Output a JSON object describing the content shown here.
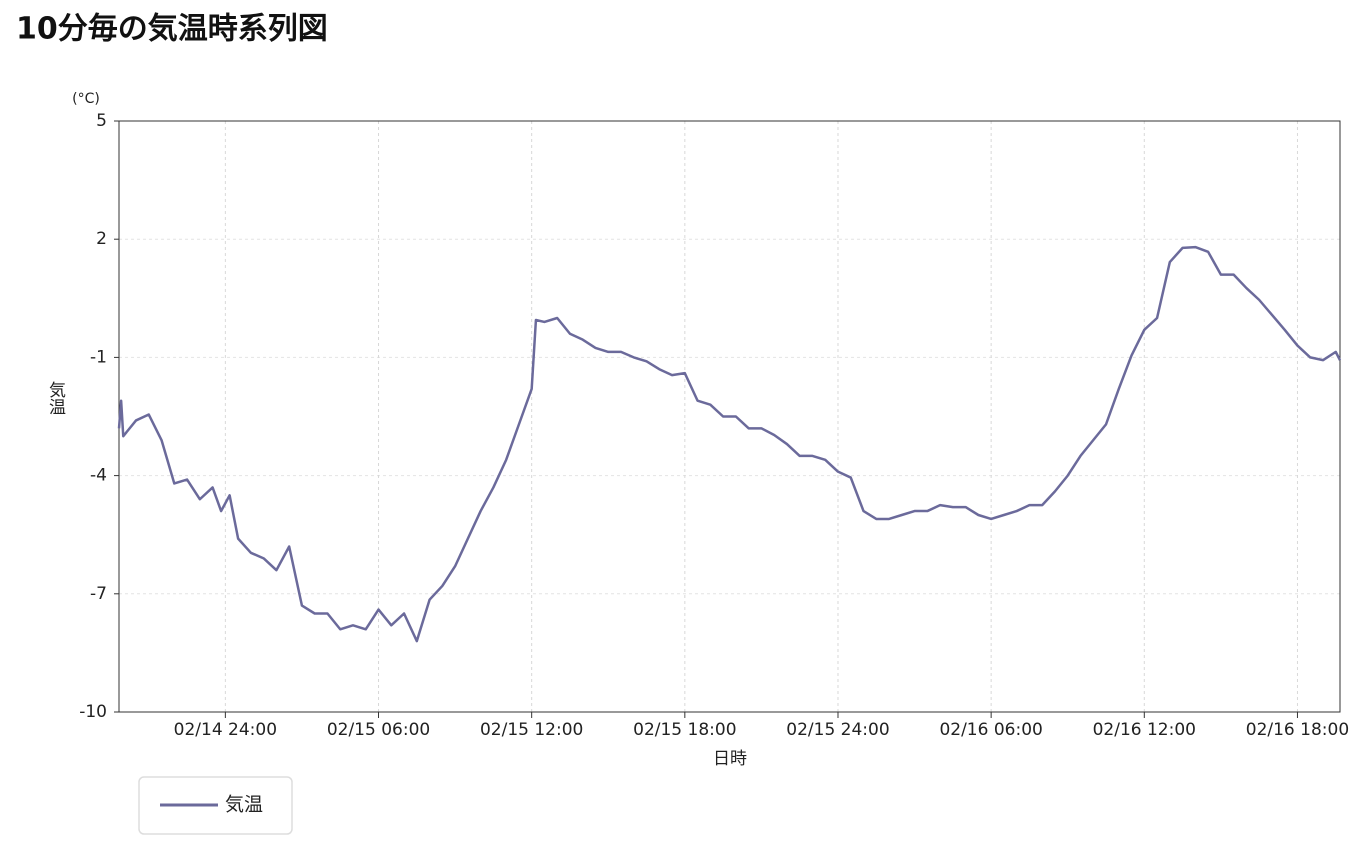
{
  "chart_data": {
    "type": "line",
    "title": "10分毎の気温時系列図",
    "x_label": "日時",
    "y_label": "気温",
    "y_unit_label": "(°C)",
    "x": [
      "02/14 19:50",
      "02/14 19:55",
      "02/14 20:00",
      "02/14 20:30",
      "02/14 21:00",
      "02/14 21:30",
      "02/14 22:00",
      "02/14 22:30",
      "02/14 23:00",
      "02/14 23:30",
      "02/14 23:50",
      "02/14 24:00",
      "02/15 00:10",
      "02/15 00:30",
      "02/15 01:00",
      "02/15 01:30",
      "02/15 02:00",
      "02/15 02:30",
      "02/15 03:00",
      "02/15 03:30",
      "02/15 04:00",
      "02/15 04:30",
      "02/15 05:00",
      "02/15 05:30",
      "02/15 06:00",
      "02/15 06:30",
      "02/15 07:00",
      "02/15 07:30",
      "02/15 08:00",
      "02/15 08:30",
      "02/15 09:00",
      "02/15 09:30",
      "02/15 10:00",
      "02/15 10:30",
      "02/15 11:00",
      "02/15 11:30",
      "02/15 12:00",
      "02/15 12:10",
      "02/15 12:30",
      "02/15 13:00",
      "02/15 13:30",
      "02/15 14:00",
      "02/15 14:30",
      "02/15 15:00",
      "02/15 15:30",
      "02/15 16:00",
      "02/15 16:30",
      "02/15 17:00",
      "02/15 17:30",
      "02/15 18:00",
      "02/15 18:30",
      "02/15 19:00",
      "02/15 19:30",
      "02/15 20:00",
      "02/15 20:30",
      "02/15 21:00",
      "02/15 21:30",
      "02/15 22:00",
      "02/15 22:30",
      "02/15 23:00",
      "02/15 23:30",
      "02/15 24:00",
      "02/16 00:30",
      "02/16 01:00",
      "02/16 01:30",
      "02/16 02:00",
      "02/16 02:30",
      "02/16 03:00",
      "02/16 03:30",
      "02/16 04:00",
      "02/16 04:30",
      "02/16 05:00",
      "02/16 05:30",
      "02/16 06:00",
      "02/16 06:30",
      "02/16 07:00",
      "02/16 07:30",
      "02/16 08:00",
      "02/16 08:30",
      "02/16 09:00",
      "02/16 09:30",
      "02/16 10:00",
      "02/16 10:30",
      "02/16 11:00",
      "02/16 11:30",
      "02/16 12:00",
      "02/16 12:30",
      "02/16 13:00",
      "02/16 13:30",
      "02/16 14:00",
      "02/16 14:30",
      "02/16 15:00",
      "02/16 15:30",
      "02/16 16:00",
      "02/16 16:30",
      "02/16 17:00",
      "02/16 17:30",
      "02/16 18:00",
      "02/16 18:30",
      "02/16 19:00",
      "02/16 19:30",
      "02/16 19:40"
    ],
    "series": [
      {
        "name": "気温",
        "color": "#6b6a9b",
        "values": [
          -2.8,
          -2.1,
          -3.0,
          -2.6,
          -2.45,
          -3.1,
          -4.2,
          -4.1,
          -4.6,
          -4.3,
          -4.9,
          -4.7,
          -4.5,
          -5.6,
          -5.96,
          -6.1,
          -6.4,
          -5.8,
          -7.3,
          -7.5,
          -7.5,
          -7.9,
          -7.8,
          -7.9,
          -7.4,
          -7.8,
          -7.5,
          -8.2,
          -7.15,
          -6.8,
          -6.3,
          -5.6,
          -4.9,
          -4.3,
          -3.6,
          -2.7,
          -1.8,
          -0.05,
          -0.1,
          0.0,
          -0.4,
          -0.55,
          -0.76,
          -0.86,
          -0.86,
          -1.0,
          -1.1,
          -1.3,
          -1.45,
          -1.4,
          -2.1,
          -2.2,
          -2.5,
          -2.5,
          -2.8,
          -2.8,
          -2.97,
          -3.2,
          -3.5,
          -3.5,
          -3.6,
          -3.9,
          -4.05,
          -4.9,
          -5.1,
          -5.1,
          -5.0,
          -4.9,
          -4.9,
          -4.75,
          -4.8,
          -4.8,
          -5.0,
          -5.1,
          -5.0,
          -4.9,
          -4.75,
          -4.75,
          -4.4,
          -4.0,
          -3.5,
          -3.1,
          -2.7,
          -1.8,
          -0.95,
          -0.3,
          0.0,
          1.42,
          1.78,
          1.8,
          1.68,
          1.1,
          1.1,
          0.76,
          0.46,
          0.08,
          -0.3,
          -0.7,
          -1.0,
          -1.07,
          -0.86,
          -1.07
        ]
      }
    ],
    "xlim": [
      "02/14 19:50",
      "02/16 19:40"
    ],
    "xticks": [
      "02/14 24:00",
      "02/15 06:00",
      "02/15 12:00",
      "02/15 18:00",
      "02/15 24:00",
      "02/16 06:00",
      "02/16 12:00",
      "02/16 18:00"
    ],
    "ylim": [
      -10,
      5
    ],
    "yticks": [
      -10,
      -7,
      -4,
      -1,
      2,
      5
    ],
    "grid": true,
    "legend": "bottom-left"
  }
}
